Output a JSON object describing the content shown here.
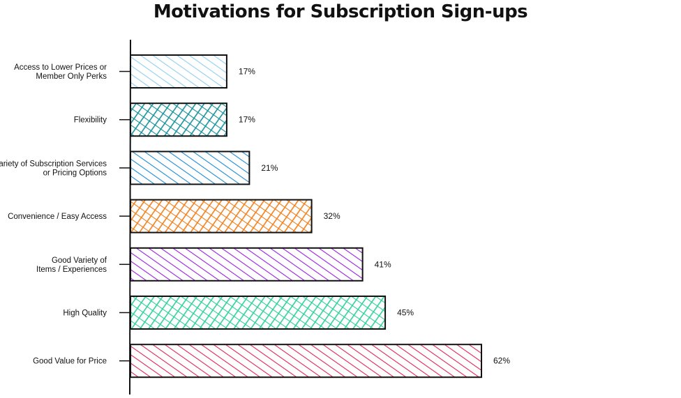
{
  "chart_data": {
    "type": "bar",
    "orientation": "horizontal",
    "title": "Motivations for Subscription Sign-ups",
    "categories": [
      [
        "Access to Lower Prices or",
        "Member Only Perks"
      ],
      [
        "Flexibility"
      ],
      [
        "Variety of Subscription Services",
        "or Pricing Options"
      ],
      [
        "Convenience / Easy Access"
      ],
      [
        "Good Variety of",
        "Items / Experiences"
      ],
      [
        "High Quality"
      ],
      [
        "Good Value for Price"
      ]
    ],
    "values": [
      17,
      17,
      21,
      32,
      41,
      45,
      62
    ],
    "value_labels": [
      "17%",
      "17%",
      "21%",
      "32%",
      "41%",
      "45%",
      "62%"
    ],
    "colors": [
      "#8ecfee",
      "#17909a",
      "#1a8bd6",
      "#f07f1a",
      "#9b1ee0",
      "#2ed09a",
      "#e0245a"
    ],
    "patterns": [
      "diagonal",
      "crosshatch",
      "diagonal",
      "crosshatch",
      "diagonal",
      "crosshatch",
      "diagonal"
    ],
    "xlim": [
      0,
      100
    ],
    "grid": false,
    "legend": "none"
  }
}
